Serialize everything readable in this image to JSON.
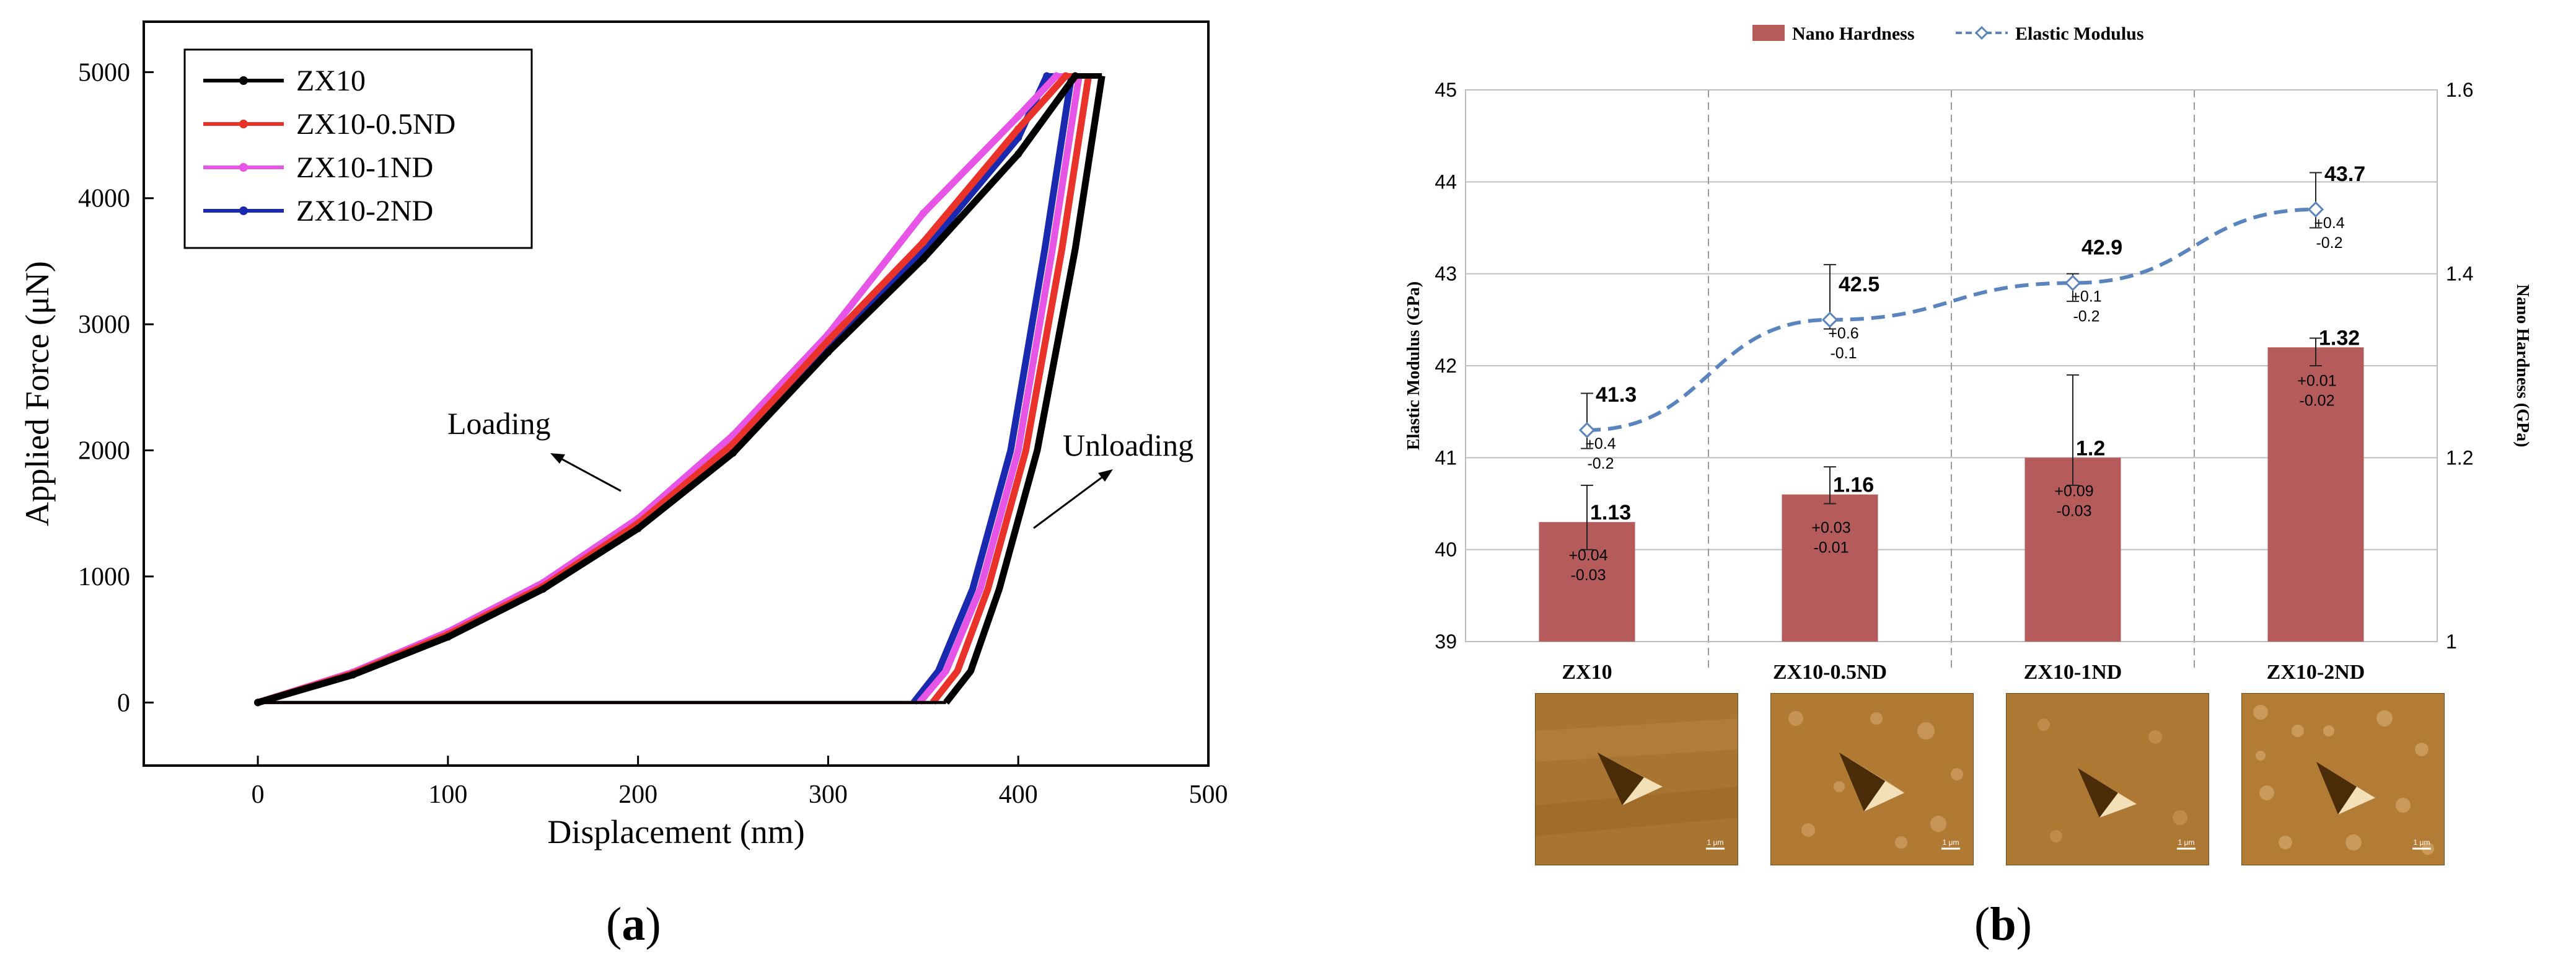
{
  "colors": {
    "zx10": "#000000",
    "zx10_05nd": "#e8322a",
    "zx10_1nd": "#e655e6",
    "zx10_2nd": "#1a2ab0",
    "bar": "#b55b5b",
    "modulus_line": "#5a84bd",
    "grid": "#bfbfbf"
  },
  "captions": {
    "a": "a",
    "b": "b"
  },
  "chart_data": [
    {
      "type": "line",
      "xlabel": "Displacement (nm)",
      "ylabel": "Applied Force (μN)",
      "xlim": [
        -60,
        500
      ],
      "ylim": [
        -500,
        5400
      ],
      "xticks": [
        "0",
        "100",
        "200",
        "300",
        "400",
        "500"
      ],
      "yticks": [
        "0",
        "1000",
        "2000",
        "3000",
        "4000",
        "5000"
      ],
      "grid": false,
      "legend_position": "top-left",
      "annotations": [
        "Loading",
        "Unloading"
      ],
      "series": [
        {
          "name": "ZX10",
          "loading": {
            "x": [
              0,
              50,
              100,
              150,
              200,
              250,
              300,
              350,
              400,
              430
            ],
            "y": [
              0,
              220,
              520,
              900,
              1380,
              1980,
              2780,
              3520,
              4350,
              4970
            ]
          },
          "hold_x": [
            430,
            444
          ],
          "unloading": {
            "x": [
              444,
              430,
              410,
              390,
              375,
              362
            ],
            "y": [
              4970,
              3600,
              2000,
              900,
              250,
              0
            ]
          }
        },
        {
          "name": "ZX10-0.5ND",
          "loading": {
            "x": [
              0,
              50,
              100,
              150,
              200,
              250,
              300,
              350,
              400,
              425
            ],
            "y": [
              0,
              230,
              540,
              920,
              1420,
              2050,
              2870,
              3650,
              4550,
              4970
            ]
          },
          "hold_x": [
            425,
            437
          ],
          "unloading": {
            "x": [
              437,
              423,
              404,
              384,
              368,
              355
            ],
            "y": [
              4970,
              3600,
              2000,
              900,
              250,
              0
            ]
          }
        },
        {
          "name": "ZX10-1ND",
          "loading": {
            "x": [
              0,
              50,
              100,
              150,
              200,
              250,
              300,
              350,
              400,
              420
            ],
            "y": [
              0,
              240,
              560,
              950,
              1460,
              2120,
              2920,
              3880,
              4650,
              4970
            ]
          },
          "hold_x": [
            420,
            432
          ],
          "unloading": {
            "x": [
              432,
              418,
              400,
              380,
              362,
              348
            ],
            "y": [
              4970,
              3600,
              2000,
              900,
              250,
              0
            ]
          }
        },
        {
          "name": "ZX10-2ND",
          "loading": {
            "x": [
              0,
              50,
              100,
              150,
              200,
              250,
              300,
              350,
              400,
              415
            ],
            "y": [
              0,
              225,
              530,
              910,
              1400,
              2000,
              2820,
              3580,
              4480,
              4970
            ]
          },
          "hold_x": [
            415,
            428
          ],
          "unloading": {
            "x": [
              428,
              414,
              396,
              376,
              358,
              345
            ],
            "y": [
              4970,
              3600,
              2000,
              900,
              250,
              0
            ]
          }
        }
      ]
    },
    {
      "type": "bar",
      "categories": [
        "ZX10",
        "ZX10-0.5ND",
        "ZX10-1ND",
        "ZX10-2ND"
      ],
      "y_left_label": "Elastic Modulus (GPa)",
      "y_right_label": "Nano Hardness (GPa)",
      "y_left_lim": [
        39,
        45
      ],
      "y_right_lim": [
        1,
        1.6
      ],
      "y_left_ticks": [
        "39",
        "40",
        "41",
        "42",
        "43",
        "44",
        "45"
      ],
      "y_right_ticks": [
        "1",
        "1.2",
        "1.4",
        "1.6"
      ],
      "legend_position": "top-center",
      "series": [
        {
          "name": "Nano Hardness",
          "axis": "right",
          "kind": "bar",
          "values": [
            1.13,
            1.16,
            1.2,
            1.32
          ],
          "labels": [
            "1.13",
            "1.16",
            "1.2",
            "1.32"
          ],
          "err_plus": [
            "+0.04",
            "+0.03",
            "+0.09",
            "+0.01"
          ],
          "err_minus": [
            "-0.03",
            "-0.01",
            "-0.03",
            "-0.02"
          ],
          "err_plus_val": [
            0.04,
            0.03,
            0.09,
            0.01
          ],
          "err_minus_val": [
            0.03,
            0.01,
            0.03,
            0.02
          ]
        },
        {
          "name": "Elastic Modulus",
          "axis": "left",
          "kind": "line",
          "values": [
            41.3,
            42.5,
            42.9,
            43.7
          ],
          "labels": [
            "41.3",
            "42.5",
            "42.9",
            "43.7"
          ],
          "err_plus": [
            "+0.4",
            "+0.6",
            "+0.1",
            "+0.4"
          ],
          "err_minus": [
            "-0.2",
            "-0.1",
            "-0.2",
            "-0.2"
          ],
          "err_plus_val": [
            0.4,
            0.6,
            0.1,
            0.4
          ],
          "err_minus_val": [
            0.2,
            0.1,
            0.2,
            0.2
          ]
        }
      ],
      "afm_scale_labels": [
        "1 μm",
        "1 μm",
        "1 μm",
        "1 μm"
      ]
    }
  ]
}
